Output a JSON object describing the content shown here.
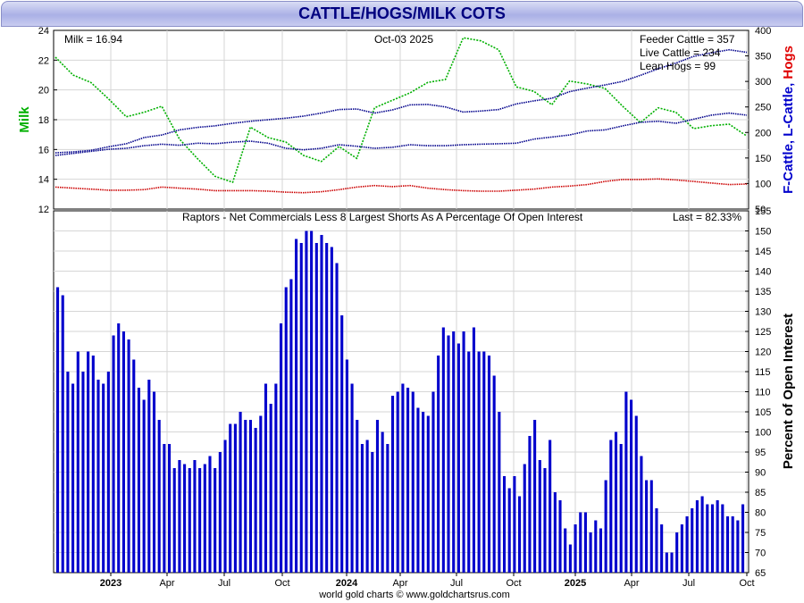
{
  "title": "CATTLE/HOGS/MILK COTS",
  "footer": "world gold charts © www.goldchartsrus.com",
  "chart_data": [
    {
      "type": "line",
      "panel": "top",
      "left_axis_label": "Milk",
      "right_axis_label_parts": [
        "F-Cattle, ",
        "L-Cattle, ",
        "Hogs"
      ],
      "left_ylim": [
        12,
        24
      ],
      "left_ticks": [
        "12",
        "14",
        "16",
        "18",
        "20",
        "22",
        "24"
      ],
      "right_ylim": [
        50,
        400
      ],
      "right_ticks": [
        "50",
        "100",
        "150",
        "200",
        "250",
        "300",
        "350",
        "400"
      ],
      "date_label": "Oct-03  2025",
      "milk_label": "Milk = 16.94",
      "feeder_label": "Feeder Cattle = 357",
      "live_label": "Live Cattle = 234",
      "hogs_label": "Lean Hogs = 99",
      "colors": {
        "milk": "#00b000",
        "feeder": "#00008b",
        "live": "#00008b",
        "hogs": "#cc0000"
      },
      "series": [
        {
          "name": "Milk",
          "axis": "left",
          "values": [
            22.2,
            21.0,
            20.5,
            19.4,
            18.2,
            18.5,
            18.9,
            16.7,
            15.4,
            14.2,
            13.8,
            17.5,
            16.8,
            16.5,
            15.6,
            15.2,
            16.2,
            15.4,
            18.8,
            19.3,
            19.8,
            20.5,
            20.7,
            23.5,
            23.3,
            22.7,
            20.2,
            19.9,
            19.0,
            20.6,
            20.4,
            20.1,
            18.9,
            17.8,
            18.8,
            18.5,
            17.4,
            17.6,
            17.7,
            16.9
          ]
        },
        {
          "name": "Feeder Cattle",
          "axis": "right",
          "values": [
            160,
            162,
            165,
            172,
            178,
            190,
            195,
            205,
            210,
            213,
            218,
            222,
            225,
            228,
            232,
            238,
            245,
            246,
            238,
            244,
            254,
            255,
            250,
            240,
            242,
            245,
            256,
            262,
            267,
            280,
            287,
            293,
            300,
            312,
            325,
            336,
            349,
            356,
            362,
            357
          ]
        },
        {
          "name": "Live Cattle",
          "axis": "right",
          "values": [
            155,
            159,
            163,
            167,
            169,
            174,
            177,
            175,
            179,
            178,
            181,
            183,
            179,
            169,
            166,
            169,
            176,
            173,
            169,
            171,
            176,
            174,
            174,
            176,
            177,
            178,
            179,
            187,
            191,
            195,
            203,
            205,
            213,
            220,
            222,
            218,
            226,
            234,
            238,
            234
          ]
        },
        {
          "name": "Lean Hogs",
          "axis": "right",
          "values": [
            93,
            91,
            89,
            87,
            87,
            88,
            93,
            91,
            89,
            86,
            86,
            86,
            85,
            83,
            82,
            84,
            88,
            93,
            96,
            94,
            96,
            91,
            88,
            86,
            85,
            85,
            87,
            89,
            93,
            95,
            98,
            104,
            108,
            108,
            109,
            107,
            104,
            101,
            98,
            99
          ]
        }
      ]
    },
    {
      "type": "bar",
      "panel": "bottom",
      "title": "Raptors - Net Commercials Less 8 Largest Shorts As A Percentage Of Open Interest",
      "last_label": "Last = 82.33%",
      "ylabel": "Percent of Open Interest",
      "ylim": [
        65,
        155
      ],
      "yticks": [
        "65",
        "70",
        "75",
        "80",
        "85",
        "90",
        "95",
        "100",
        "105",
        "110",
        "115",
        "120",
        "125",
        "130",
        "135",
        "140",
        "145",
        "150",
        "155"
      ],
      "x_labels": [
        {
          "text": "2023",
          "bold": true
        },
        {
          "text": "Apr",
          "bold": false
        },
        {
          "text": "Jul",
          "bold": false
        },
        {
          "text": "Oct",
          "bold": false
        },
        {
          "text": "2024",
          "bold": true
        },
        {
          "text": "Apr",
          "bold": false
        },
        {
          "text": "Jul",
          "bold": false
        },
        {
          "text": "Oct",
          "bold": false
        },
        {
          "text": "2025",
          "bold": true
        },
        {
          "text": "Apr",
          "bold": false
        },
        {
          "text": "Jul",
          "bold": false
        },
        {
          "text": "Oct",
          "bold": false
        }
      ],
      "bar_color": "#0000cc",
      "values": [
        136,
        134,
        115,
        112,
        120,
        115,
        120,
        119,
        113,
        112,
        115,
        124,
        127,
        125,
        123,
        118,
        111,
        108,
        113,
        110,
        103,
        97,
        97,
        91,
        93,
        92,
        91,
        93,
        91,
        92,
        94,
        91,
        95,
        98,
        102,
        102,
        105,
        103,
        103,
        101,
        104,
        112,
        107,
        112,
        127,
        136,
        138,
        148,
        147,
        150,
        150,
        147,
        149,
        147,
        146,
        142,
        129,
        118,
        112,
        103,
        97,
        98,
        95,
        103,
        100,
        97,
        109,
        110,
        112,
        111,
        110,
        106,
        105,
        104,
        110,
        119,
        126,
        124,
        125,
        122,
        125,
        120,
        126,
        120,
        120,
        119,
        114,
        105,
        89,
        86,
        89,
        84,
        92,
        99,
        103,
        93,
        91,
        98,
        85,
        83,
        76,
        72,
        77,
        80,
        80,
        75,
        78,
        76,
        88,
        98,
        100,
        97,
        110,
        108,
        104,
        94,
        88,
        88,
        81,
        77,
        70,
        70,
        75,
        77,
        79,
        81,
        83,
        84,
        82,
        82,
        83,
        82,
        79,
        79,
        78,
        82
      ]
    }
  ]
}
